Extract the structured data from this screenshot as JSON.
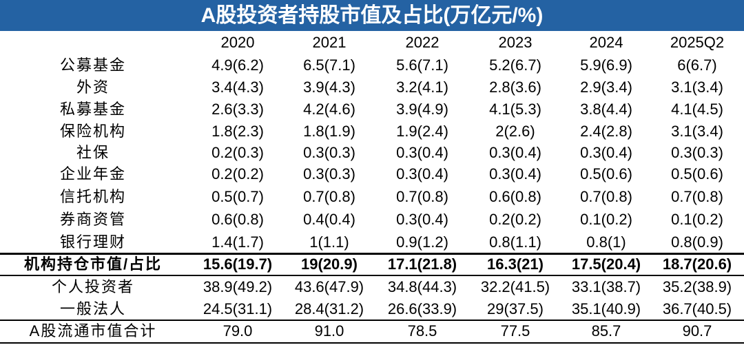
{
  "title": "A股投资者持股市值及占比(万亿元/%)",
  "table": {
    "header": [
      "2020",
      "2021",
      "2022",
      "2023",
      "2024",
      "2025Q2"
    ],
    "rows": [
      {
        "label": "公募基金",
        "cells": [
          "4.9(6.2)",
          "6.5(7.1)",
          "5.6(7.1)",
          "5.2(6.7)",
          "5.9(6.9)",
          "6(6.7)"
        ]
      },
      {
        "label": "外资",
        "cells": [
          "3.4(4.3)",
          "3.9(4.3)",
          "3.2(4.1)",
          "2.8(3.6)",
          "2.9(3.4)",
          "3.1(3.4)"
        ]
      },
      {
        "label": "私募基金",
        "cells": [
          "2.6(3.3)",
          "4.2(4.6)",
          "3.9(4.9)",
          "4.1(5.3)",
          "3.8(4.4)",
          "4.1(4.5)"
        ]
      },
      {
        "label": "保险机构",
        "cells": [
          "1.8(2.3)",
          "1.8(1.9)",
          "1.9(2.4)",
          "2(2.6)",
          "2.4(2.8)",
          "3.1(3.4)"
        ]
      },
      {
        "label": "社保",
        "cells": [
          "0.2(0.3)",
          "0.3(0.3)",
          "0.3(0.4)",
          "0.3(0.4)",
          "0.3(0.4)",
          "0.3(0.3)"
        ]
      },
      {
        "label": "企业年金",
        "cells": [
          "0.2(0.2)",
          "0.3(0.3)",
          "0.3(0.4)",
          "0.3(0.4)",
          "0.5(0.6)",
          "0.5(0.6)"
        ]
      },
      {
        "label": "信托机构",
        "cells": [
          "0.5(0.7)",
          "0.7(0.8)",
          "0.7(0.8)",
          "0.6(0.8)",
          "0.7(0.8)",
          "0.7(0.8)"
        ]
      },
      {
        "label": "券商资管",
        "cells": [
          "0.6(0.8)",
          "0.4(0.4)",
          "0.3(0.4)",
          "0.2(0.2)",
          "0.1(0.2)",
          "0.1(0.2)"
        ]
      },
      {
        "label": "银行理财",
        "cells": [
          "1.4(1.7)",
          "1(1.1)",
          "0.9(1.2)",
          "0.8(1.1)",
          "0.8(1)",
          "0.8(0.9)"
        ]
      },
      {
        "label": "机构持仓市值/占比",
        "cells": [
          "15.6(19.7)",
          "19(20.9)",
          "17.1(21.8)",
          "16.3(21)",
          "17.5(20.4)",
          "18.7(20.6)"
        ]
      },
      {
        "label": "个人投资者",
        "cells": [
          "38.9(49.2)",
          "43.6(47.9)",
          "34.8(44.3)",
          "32.2(41.5)",
          "33.1(38.7)",
          "35.2(38.9)"
        ]
      },
      {
        "label": "一般法人",
        "cells": [
          "24.5(31.1)",
          "28.4(31.2)",
          "26.6(33.9)",
          "29(37.5)",
          "35.1(40.9)",
          "36.7(40.5)"
        ]
      },
      {
        "label": "A股流通市值合计",
        "cells": [
          "79.0",
          "91.0",
          "78.5",
          "77.5",
          "85.7",
          "90.7"
        ]
      }
    ]
  }
}
